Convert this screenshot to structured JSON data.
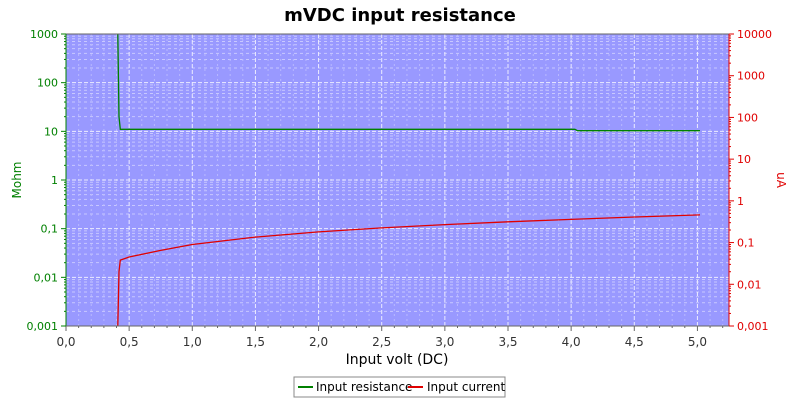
{
  "chart_data": {
    "type": "line",
    "title": "mVDC input resistance",
    "xlabel": "Input volt (DC)",
    "ylabel_left": "Mohm",
    "ylabel_right": "uA",
    "xlim": [
      0,
      5.25
    ],
    "x_ticks": [
      "0,0",
      "0,5",
      "1,0",
      "1,5",
      "2,0",
      "2,5",
      "3,0",
      "3,5",
      "4,0",
      "4,5",
      "5,0"
    ],
    "x_tick_values": [
      0,
      0.5,
      1.0,
      1.5,
      2.0,
      2.5,
      3.0,
      3.5,
      4.0,
      4.5,
      5.0
    ],
    "y_left": {
      "scale": "log",
      "lim": [
        0.001,
        1000
      ],
      "ticks": [
        "0,001",
        "0,01",
        "0,1",
        "1",
        "10",
        "100",
        "1000"
      ],
      "tick_values": [
        0.001,
        0.01,
        0.1,
        1,
        10,
        100,
        1000
      ],
      "color": "#008000"
    },
    "y_right": {
      "scale": "log",
      "lim": [
        0.001,
        10000
      ],
      "ticks": [
        "0,001",
        "0,01",
        "0,1",
        "1",
        "10",
        "100",
        "1000",
        "10000"
      ],
      "tick_values": [
        0.001,
        0.01,
        0.1,
        1,
        10,
        100,
        1000,
        10000
      ],
      "color": "#e00000"
    },
    "grid": true,
    "background": "#9999ff",
    "legend_position": "bottom",
    "series": [
      {
        "name": "Input resistance",
        "axis": "left",
        "color": "#008000",
        "x": [
          0.41,
          0.42,
          0.43,
          1.0,
          2.0,
          3.0,
          4.0,
          4.03,
          4.05,
          5.02
        ],
        "y": [
          1000,
          20,
          11,
          11,
          11,
          11,
          11,
          11,
          10.3,
          10.3
        ]
      },
      {
        "name": "Input current",
        "axis": "right",
        "color": "#e00000",
        "x": [
          0.41,
          0.42,
          0.43,
          0.5,
          0.75,
          1.0,
          1.5,
          2.0,
          2.5,
          3.0,
          3.5,
          4.0,
          4.5,
          5.02
        ],
        "y": [
          0.001,
          0.02,
          0.038,
          0.045,
          0.065,
          0.09,
          0.135,
          0.18,
          0.225,
          0.27,
          0.315,
          0.36,
          0.41,
          0.46
        ]
      }
    ]
  }
}
